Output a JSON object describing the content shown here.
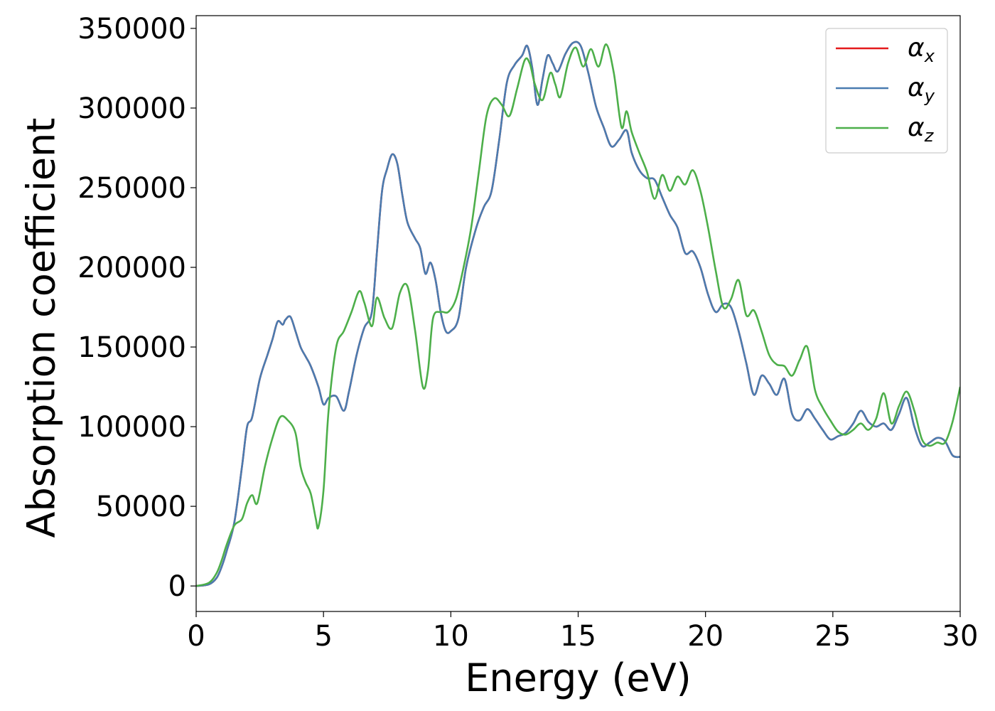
{
  "chart_data": {
    "type": "line",
    "xlabel": "Energy (eV)",
    "ylabel": "Absorption coefficient",
    "xlim": [
      0,
      30
    ],
    "ylim": [
      -16000,
      358000
    ],
    "xticks": [
      "0",
      "5",
      "10",
      "15",
      "20",
      "25",
      "30"
    ],
    "yticks": [
      "0",
      "50000",
      "100000",
      "150000",
      "200000",
      "250000",
      "300000",
      "350000"
    ],
    "xtick_values": [
      0,
      5,
      10,
      15,
      20,
      25,
      30
    ],
    "ytick_values": [
      0,
      50000,
      100000,
      150000,
      200000,
      250000,
      300000,
      350000
    ],
    "grid": false,
    "legend_position": "top-right",
    "series": [
      {
        "name": "α",
        "subscript": "x",
        "color": "#e41a1c",
        "x": [
          0,
          0.5,
          0.8,
          1.0,
          1.2,
          1.5,
          1.8,
          2.0,
          2.2,
          2.5,
          2.8,
          3.0,
          3.2,
          3.4,
          3.5,
          3.7,
          3.9,
          4.1,
          4.3,
          4.5,
          4.8,
          5.0,
          5.2,
          5.5,
          5.8,
          6.0,
          6.3,
          6.6,
          6.9,
          7.1,
          7.3,
          7.5,
          7.7,
          7.9,
          8.1,
          8.3,
          8.6,
          8.8,
          9.0,
          9.2,
          9.4,
          9.6,
          9.8,
          10.0,
          10.3,
          10.6,
          11.0,
          11.3,
          11.6,
          11.9,
          12.2,
          12.5,
          12.8,
          13.0,
          13.2,
          13.4,
          13.6,
          13.8,
          14.0,
          14.2,
          14.5,
          14.8,
          15.1,
          15.4,
          15.7,
          16.0,
          16.3,
          16.6,
          16.9,
          17.1,
          17.4,
          17.7,
          18.0,
          18.3,
          18.6,
          18.9,
          19.2,
          19.5,
          19.8,
          20.1,
          20.4,
          20.7,
          21.0,
          21.3,
          21.6,
          21.9,
          22.2,
          22.5,
          22.8,
          23.1,
          23.4,
          23.7,
          24.0,
          24.3,
          24.6,
          24.9,
          25.2,
          25.5,
          25.8,
          26.1,
          26.4,
          26.7,
          27.0,
          27.3,
          27.6,
          27.9,
          28.2,
          28.5,
          28.8,
          29.1,
          29.4,
          29.7,
          30.0
        ],
        "y": [
          0,
          1000,
          5000,
          12000,
          22000,
          40000,
          75000,
          100000,
          106000,
          130000,
          145000,
          155000,
          166000,
          164000,
          167000,
          169000,
          160000,
          150000,
          144000,
          138000,
          125000,
          114000,
          118000,
          119000,
          110000,
          122000,
          145000,
          162000,
          172000,
          210000,
          248000,
          262000,
          271000,
          265000,
          245000,
          228000,
          218000,
          212000,
          196000,
          203000,
          192000,
          172000,
          160000,
          160000,
          168000,
          200000,
          225000,
          238000,
          248000,
          280000,
          316000,
          327000,
          333000,
          339000,
          325000,
          302000,
          318000,
          333000,
          328000,
          323000,
          334000,
          341000,
          339000,
          322000,
          301000,
          288000,
          276000,
          280000,
          286000,
          272000,
          261000,
          256000,
          255000,
          244000,
          233000,
          225000,
          209000,
          210000,
          200000,
          183000,
          172000,
          177000,
          175000,
          160000,
          140000,
          120000,
          132000,
          127000,
          120000,
          130000,
          108000,
          104000,
          111000,
          105000,
          98000,
          92000,
          94000,
          96000,
          102000,
          110000,
          103000,
          100000,
          102000,
          98000,
          108000,
          118000,
          100000,
          88000,
          90000,
          93000,
          91000,
          82000,
          81000
        ]
      },
      {
        "name": "α",
        "subscript": "y",
        "color": "#4a7cb0",
        "x": [
          0,
          0.5,
          0.8,
          1.0,
          1.2,
          1.5,
          1.8,
          2.0,
          2.2,
          2.5,
          2.8,
          3.0,
          3.2,
          3.4,
          3.5,
          3.7,
          3.9,
          4.1,
          4.3,
          4.5,
          4.8,
          5.0,
          5.2,
          5.5,
          5.8,
          6.0,
          6.3,
          6.6,
          6.9,
          7.1,
          7.3,
          7.5,
          7.7,
          7.9,
          8.1,
          8.3,
          8.6,
          8.8,
          9.0,
          9.2,
          9.4,
          9.6,
          9.8,
          10.0,
          10.3,
          10.6,
          11.0,
          11.3,
          11.6,
          11.9,
          12.2,
          12.5,
          12.8,
          13.0,
          13.2,
          13.4,
          13.6,
          13.8,
          14.0,
          14.2,
          14.5,
          14.8,
          15.1,
          15.4,
          15.7,
          16.0,
          16.3,
          16.6,
          16.9,
          17.1,
          17.4,
          17.7,
          18.0,
          18.3,
          18.6,
          18.9,
          19.2,
          19.5,
          19.8,
          20.1,
          20.4,
          20.7,
          21.0,
          21.3,
          21.6,
          21.9,
          22.2,
          22.5,
          22.8,
          23.1,
          23.4,
          23.7,
          24.0,
          24.3,
          24.6,
          24.9,
          25.2,
          25.5,
          25.8,
          26.1,
          26.4,
          26.7,
          27.0,
          27.3,
          27.6,
          27.9,
          28.2,
          28.5,
          28.8,
          29.1,
          29.4,
          29.7,
          30.0
        ],
        "y": [
          0,
          1000,
          5000,
          12000,
          22000,
          40000,
          75000,
          100000,
          106000,
          130000,
          145000,
          155000,
          166000,
          164000,
          167000,
          169000,
          160000,
          150000,
          144000,
          138000,
          125000,
          114000,
          118000,
          119000,
          110000,
          122000,
          145000,
          162000,
          172000,
          210000,
          248000,
          262000,
          271000,
          265000,
          245000,
          228000,
          218000,
          212000,
          196000,
          203000,
          192000,
          172000,
          160000,
          160000,
          168000,
          200000,
          225000,
          238000,
          248000,
          280000,
          316000,
          327000,
          333000,
          339000,
          325000,
          302000,
          318000,
          333000,
          328000,
          323000,
          334000,
          341000,
          339000,
          322000,
          301000,
          288000,
          276000,
          280000,
          286000,
          272000,
          261000,
          256000,
          255000,
          244000,
          233000,
          225000,
          209000,
          210000,
          200000,
          183000,
          172000,
          177000,
          175000,
          160000,
          140000,
          120000,
          132000,
          127000,
          120000,
          130000,
          108000,
          104000,
          111000,
          105000,
          98000,
          92000,
          94000,
          96000,
          102000,
          110000,
          103000,
          100000,
          102000,
          98000,
          108000,
          118000,
          100000,
          88000,
          90000,
          93000,
          91000,
          82000,
          81000
        ]
      },
      {
        "name": "α",
        "subscript": "z",
        "color": "#4daf4a",
        "x": [
          0,
          0.5,
          0.8,
          1.0,
          1.2,
          1.5,
          1.8,
          2.0,
          2.2,
          2.4,
          2.7,
          3.0,
          3.3,
          3.6,
          3.9,
          4.1,
          4.3,
          4.5,
          4.7,
          4.8,
          5.0,
          5.2,
          5.5,
          5.8,
          6.1,
          6.4,
          6.6,
          6.9,
          7.1,
          7.4,
          7.7,
          8.0,
          8.3,
          8.6,
          8.9,
          9.1,
          9.3,
          9.6,
          9.9,
          10.2,
          10.5,
          10.8,
          11.1,
          11.4,
          11.7,
          12.0,
          12.3,
          12.6,
          12.9,
          13.1,
          13.3,
          13.6,
          13.9,
          14.1,
          14.3,
          14.6,
          14.9,
          15.2,
          15.5,
          15.8,
          16.1,
          16.4,
          16.7,
          16.9,
          17.1,
          17.4,
          17.7,
          18.0,
          18.3,
          18.6,
          18.9,
          19.2,
          19.5,
          19.8,
          20.1,
          20.4,
          20.7,
          21.0,
          21.3,
          21.6,
          21.9,
          22.2,
          22.5,
          22.8,
          23.1,
          23.4,
          23.7,
          24.0,
          24.3,
          24.6,
          24.9,
          25.2,
          25.5,
          25.8,
          26.1,
          26.4,
          26.7,
          27.0,
          27.3,
          27.6,
          27.9,
          28.2,
          28.5,
          28.8,
          29.1,
          29.4,
          29.7,
          30.0
        ],
        "y": [
          0,
          2000,
          8000,
          16000,
          26000,
          38000,
          42000,
          52000,
          57000,
          52000,
          75000,
          93000,
          106000,
          104000,
          96000,
          75000,
          65000,
          58000,
          42000,
          37000,
          60000,
          110000,
          150000,
          160000,
          172000,
          185000,
          178000,
          163000,
          181000,
          168000,
          162000,
          184000,
          188000,
          160000,
          125000,
          135000,
          168000,
          172000,
          172000,
          180000,
          200000,
          225000,
          260000,
          295000,
          306000,
          302000,
          295000,
          312000,
          330000,
          328000,
          315000,
          305000,
          322000,
          315000,
          307000,
          328000,
          338000,
          326000,
          337000,
          326000,
          340000,
          322000,
          288000,
          298000,
          285000,
          272000,
          260000,
          243000,
          258000,
          248000,
          257000,
          252000,
          261000,
          248000,
          225000,
          198000,
          175000,
          180000,
          192000,
          170000,
          173000,
          160000,
          145000,
          139000,
          138000,
          132000,
          142000,
          150000,
          123000,
          112000,
          104000,
          97000,
          95000,
          98000,
          102000,
          98000,
          105000,
          121000,
          102000,
          113000,
          122000,
          110000,
          92000,
          88000,
          90000,
          90000,
          103000,
          125000
        ]
      }
    ]
  }
}
